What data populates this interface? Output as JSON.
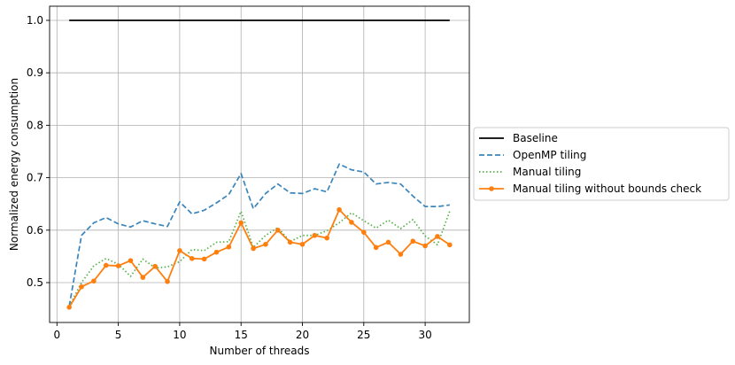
{
  "chart_data": {
    "type": "line",
    "xlabel": "Number of threads",
    "ylabel": "Normalized energy consumption",
    "xlim": [
      -0.6,
      33.6
    ],
    "ylim": [
      0.424,
      1.027
    ],
    "xticks": [
      0,
      5,
      10,
      15,
      20,
      25,
      30
    ],
    "yticks": [
      0.5,
      0.6,
      0.7,
      0.8,
      0.9,
      1.0
    ],
    "ytick_labels": [
      "0.5",
      "0.6",
      "0.7",
      "0.8",
      "0.9",
      "1.0"
    ],
    "grid": true,
    "legend_position": "outside right",
    "x": [
      1,
      2,
      3,
      4,
      5,
      6,
      7,
      8,
      9,
      10,
      11,
      12,
      13,
      14,
      15,
      16,
      17,
      18,
      19,
      20,
      21,
      22,
      23,
      24,
      25,
      26,
      27,
      28,
      29,
      30,
      31,
      32
    ],
    "series": [
      {
        "name": "Baseline",
        "color": "#000000",
        "style": "solid",
        "marker": "none",
        "values": [
          1,
          1,
          1,
          1,
          1,
          1,
          1,
          1,
          1,
          1,
          1,
          1,
          1,
          1,
          1,
          1,
          1,
          1,
          1,
          1,
          1,
          1,
          1,
          1,
          1,
          1,
          1,
          1,
          1,
          1,
          1,
          1
        ]
      },
      {
        "name": "OpenMP tiling",
        "color": "#3a85bb",
        "style": "dashed",
        "marker": "none",
        "values": [
          0.455,
          0.59,
          0.614,
          0.624,
          0.612,
          0.606,
          0.618,
          0.612,
          0.607,
          0.654,
          0.631,
          0.638,
          0.652,
          0.668,
          0.708,
          0.641,
          0.67,
          0.688,
          0.671,
          0.67,
          0.679,
          0.673,
          0.726,
          0.715,
          0.711,
          0.688,
          0.691,
          0.688,
          0.665,
          0.645,
          0.645,
          0.648
        ]
      },
      {
        "name": "Manual tiling",
        "color": "#55b04a",
        "style": "dotted",
        "marker": "none",
        "values": [
          0.455,
          0.5,
          0.532,
          0.546,
          0.535,
          0.512,
          0.545,
          0.528,
          0.53,
          0.54,
          0.563,
          0.561,
          0.577,
          0.578,
          0.636,
          0.567,
          0.59,
          0.605,
          0.578,
          0.59,
          0.59,
          0.599,
          0.614,
          0.633,
          0.618,
          0.604,
          0.619,
          0.603,
          0.62,
          0.589,
          0.572,
          0.636
        ]
      },
      {
        "name": "Manual tiling without bounds check",
        "color": "#ff7f0e",
        "style": "solid",
        "marker": "circle",
        "values": [
          0.453,
          0.492,
          0.503,
          0.533,
          0.532,
          0.542,
          0.51,
          0.531,
          0.502,
          0.561,
          0.546,
          0.545,
          0.558,
          0.568,
          0.614,
          0.565,
          0.573,
          0.6,
          0.577,
          0.573,
          0.59,
          0.585,
          0.639,
          0.615,
          0.596,
          0.567,
          0.577,
          0.554,
          0.579,
          0.57,
          0.588,
          0.572
        ]
      }
    ]
  }
}
